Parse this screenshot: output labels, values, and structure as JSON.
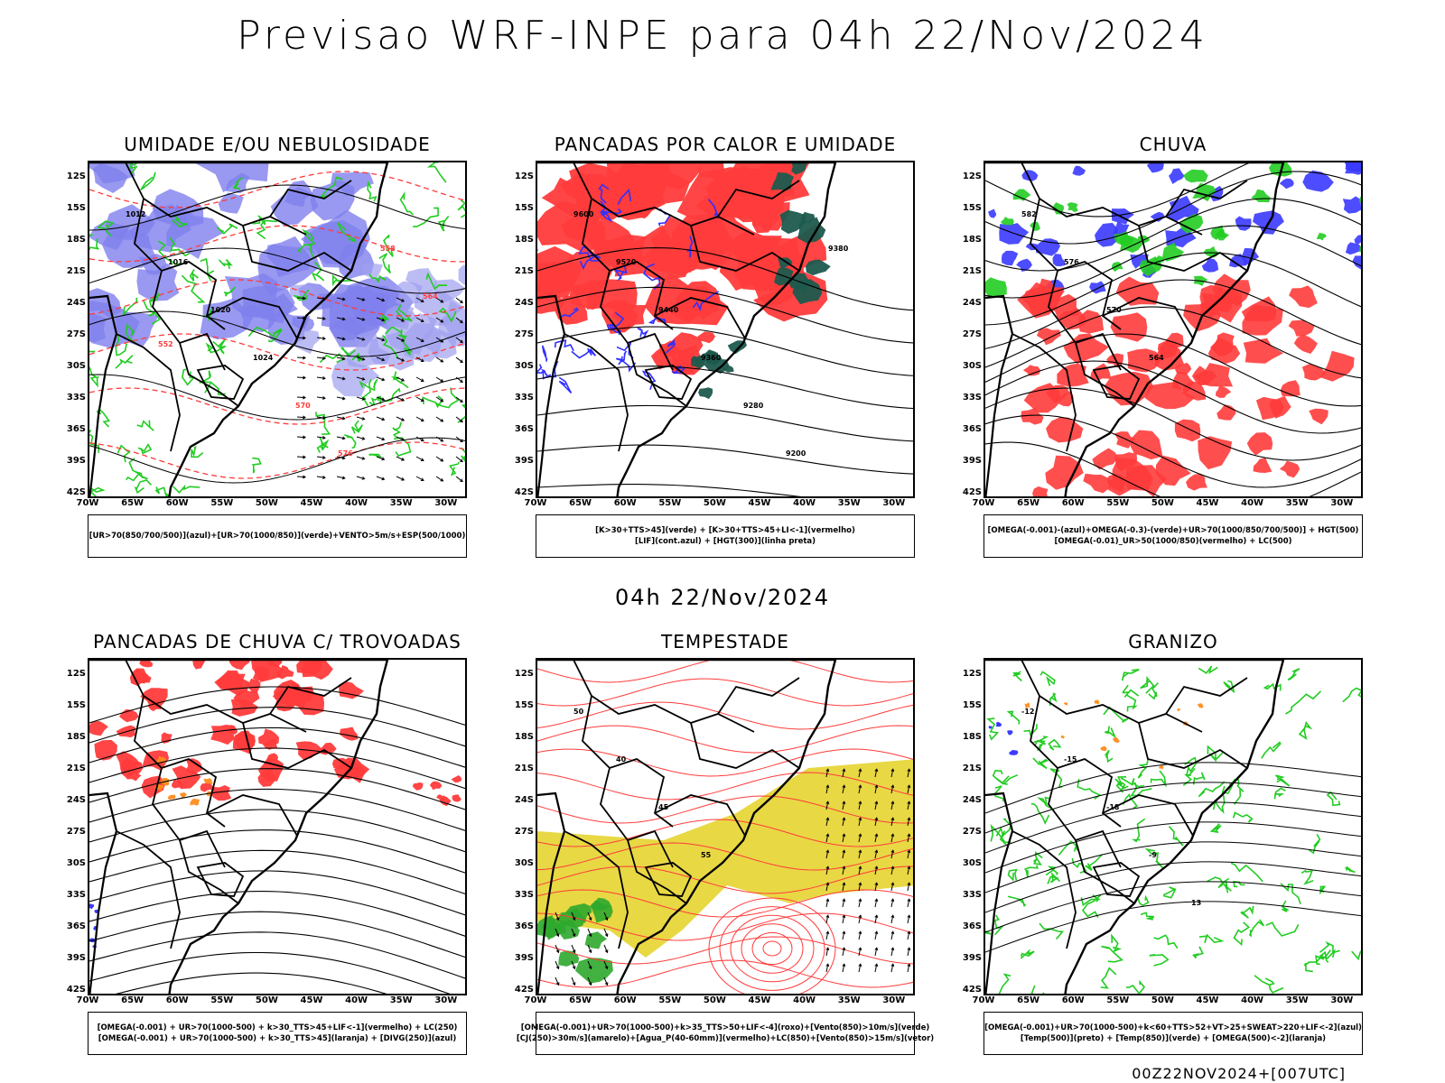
{
  "title": "Previsao WRF-INPE  para 04h 22/Nov/2024",
  "mid_date": "04h 22/Nov/2024",
  "footer_stamp": "00Z22NOV2024+[007UTC]",
  "lat_labels": [
    "12S",
    "15S",
    "18S",
    "21S",
    "24S",
    "27S",
    "30S",
    "33S",
    "36S",
    "39S",
    "42S"
  ],
  "lon_labels": [
    "70W",
    "65W",
    "60W",
    "55W",
    "50W",
    "45W",
    "40W",
    "35W",
    "30W"
  ],
  "colors": {
    "blue": "#4040ff",
    "green": "#22cc22",
    "red": "#ff3b3b",
    "yellow": "#e6d430",
    "orange": "#ff8c1a",
    "dark_green": "#1e5a4e"
  },
  "panels": [
    {
      "title": "UMIDADE E/OU NEBULOSIDADE",
      "legend": [
        "[UR>70(850/700/500)](azul)+[UR>70(1000/850)](verde)+VENTO>5m/s+ESP(500/1000)"
      ],
      "contour_labels": [
        "1012",
        "1016",
        "1020",
        "1024",
        "570",
        "576",
        "558",
        "564",
        "552"
      ]
    },
    {
      "title": "PANCADAS POR CALOR E UMIDADE",
      "legend": [
        "[K>30+TTS>45](verde)  +  [K>30+TTS>45+LI<-1](vermelho)",
        "[LIF](cont.azul)  +  [HGT(300)](linha preta)"
      ],
      "contour_labels": [
        "9600",
        "9520",
        "9440",
        "9360",
        "9280",
        "9200",
        "9380"
      ]
    },
    {
      "title": "CHUVA",
      "legend": [
        "[OMEGA(-0.001)-(azul)+OMEGA(-0.3)-(verde)+UR>70(1000/850/700/500)]  +  HGT(500)",
        "[OMEGA(-0.01)_UR>50(1000/850)(vermelho)  +  LC(500)"
      ],
      "contour_labels": [
        "582",
        "576",
        "570",
        "564"
      ]
    },
    {
      "title": "PANCADAS DE CHUVA C/ TROVOADAS",
      "legend": [
        "[OMEGA(-0.001)  +  UR>70(1000-500)  +  k>30_TTS>45+LIF<-1](vermelho)  +  LC(250)",
        "[OMEGA(-0.001)  +  UR>70(1000-500)  +  k>30_TTS>45](laranja)  +  [DIVG(250)](azul)"
      ],
      "contour_labels": []
    },
    {
      "title": "TEMPESTADE",
      "legend": [
        "[OMEGA(-0.001)+UR>70(1000-500)+k>35_TTS>50+LIF<-4](roxo)+[Vento(850)>10m/s](verde)",
        "[CJ(250)>30m/s](amarelo)+[Agua_P(40-60mm)](vermelho)+LC(850)+[Vento(850)>15m/s](vetor)"
      ],
      "contour_labels": [
        "50",
        "40",
        "45",
        "55"
      ]
    },
    {
      "title": "GRANIZO",
      "legend": [
        "[OMEGA(-0.001)+UR>70(1000-500)+k<60+TTS>52+VT>25+SWEAT>220+LIF<-2](azul)",
        "[Temp(500)](preto)  +  [Temp(850)](verde)  +  [OMEGA(500)<-2](laranja)"
      ],
      "contour_labels": [
        "-12",
        "-15",
        "-18",
        "-9",
        "13"
      ]
    }
  ]
}
